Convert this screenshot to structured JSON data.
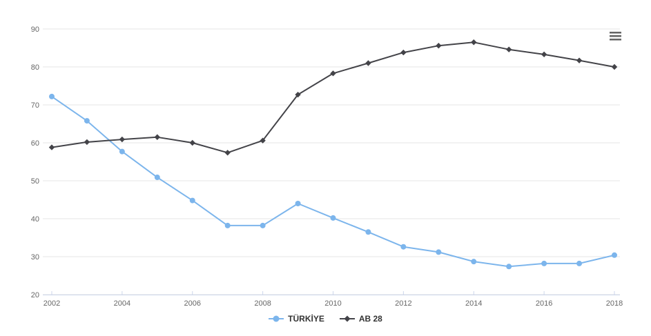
{
  "chart": {
    "background": "#ffffff",
    "colors": {
      "grid": "#e6e6e6",
      "axis_line": "#ccd6eb",
      "tick_label": "#666666",
      "legend_text": "#333333"
    },
    "context_menu_icon": "hamburger-menu-icon"
  },
  "chart_data": {
    "type": "line",
    "x": [
      2002,
      2003,
      2004,
      2005,
      2006,
      2007,
      2008,
      2009,
      2010,
      2011,
      2012,
      2013,
      2014,
      2015,
      2016,
      2017,
      2018
    ],
    "series": [
      {
        "name": "TÜRKİYE",
        "color": "#7cb5ec",
        "marker": "circle",
        "values": [
          72.2,
          65.8,
          57.7,
          50.9,
          44.8,
          38.2,
          38.2,
          44.0,
          40.2,
          36.5,
          32.6,
          31.2,
          28.7,
          27.4,
          28.2,
          28.2,
          30.4
        ]
      },
      {
        "name": "AB 28",
        "color": "#434348",
        "marker": "diamond",
        "values": [
          58.8,
          60.2,
          60.9,
          61.5,
          60.0,
          57.4,
          60.6,
          72.7,
          78.3,
          81.0,
          83.8,
          85.6,
          86.5,
          84.6,
          83.3,
          81.7,
          80.0
        ]
      }
    ],
    "title": "",
    "xlabel": "",
    "ylabel": "",
    "ylim": [
      20,
      90
    ],
    "y_ticks": [
      20,
      30,
      40,
      50,
      60,
      70,
      80,
      90
    ],
    "x_tick_years": [
      2002,
      2004,
      2006,
      2008,
      2010,
      2012,
      2014,
      2016,
      2018
    ],
    "grid": true,
    "legend_position": "bottom-center"
  }
}
